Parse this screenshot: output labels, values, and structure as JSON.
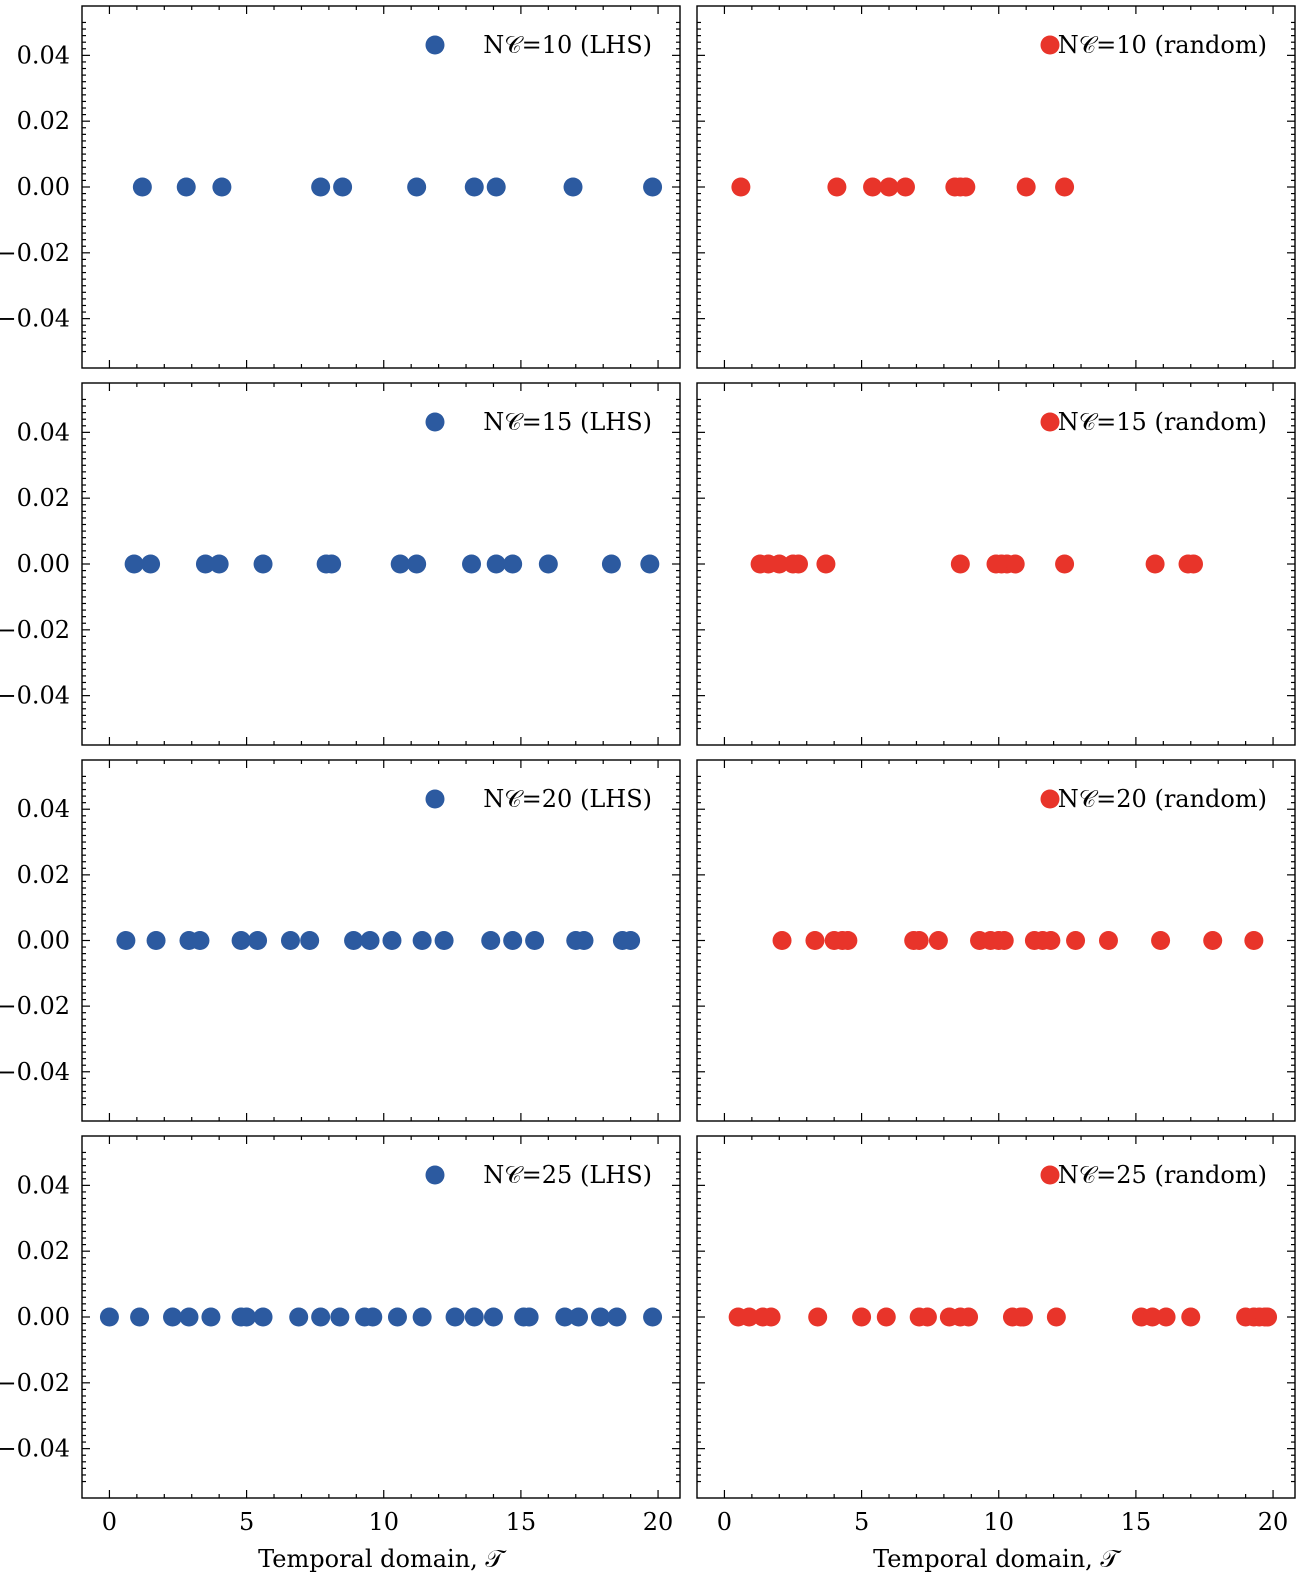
{
  "figure": {
    "xlabel": "Temporal domain, 𝒯"
  },
  "chart_data": [
    {
      "type": "scatter",
      "legend": "N𝒞=10 (LHS)",
      "color": "#2c5aa0",
      "xlim": [
        -1,
        20.8
      ],
      "ylim": [
        -0.055,
        0.055
      ],
      "x": [
        1.2,
        2.8,
        4.1,
        7.7,
        8.5,
        11.2,
        13.3,
        14.1,
        16.9,
        19.8
      ],
      "y": [
        0,
        0,
        0,
        0,
        0,
        0,
        0,
        0,
        0,
        0
      ]
    },
    {
      "type": "scatter",
      "legend": "N𝒞=10 (random)",
      "color": "#e8342a",
      "xlim": [
        -1,
        20.8
      ],
      "ylim": [
        -0.055,
        0.055
      ],
      "x": [
        0.6,
        4.1,
        5.4,
        6.0,
        6.6,
        8.4,
        8.6,
        8.8,
        11.0,
        12.4
      ],
      "y": [
        0,
        0,
        0,
        0,
        0,
        0,
        0,
        0,
        0,
        0
      ]
    },
    {
      "type": "scatter",
      "legend": "N𝒞=15 (LHS)",
      "color": "#2c5aa0",
      "xlim": [
        -1,
        20.8
      ],
      "ylim": [
        -0.055,
        0.055
      ],
      "x": [
        0.9,
        1.5,
        3.5,
        4.0,
        5.6,
        7.9,
        8.1,
        10.6,
        11.2,
        13.2,
        14.1,
        14.7,
        16.0,
        18.3,
        19.7
      ],
      "y": [
        0,
        0,
        0,
        0,
        0,
        0,
        0,
        0,
        0,
        0,
        0,
        0,
        0,
        0,
        0
      ]
    },
    {
      "type": "scatter",
      "legend": "N𝒞=15 (random)",
      "color": "#e8342a",
      "xlim": [
        -1,
        20.8
      ],
      "ylim": [
        -0.055,
        0.055
      ],
      "x": [
        1.3,
        1.6,
        2.0,
        2.5,
        2.7,
        3.7,
        8.6,
        9.9,
        10.1,
        10.3,
        10.6,
        12.4,
        15.7,
        16.9,
        17.1
      ],
      "y": [
        0,
        0,
        0,
        0,
        0,
        0,
        0,
        0,
        0,
        0,
        0,
        0,
        0,
        0,
        0
      ]
    },
    {
      "type": "scatter",
      "legend": "N𝒞=20 (LHS)",
      "color": "#2c5aa0",
      "xlim": [
        -1,
        20.8
      ],
      "ylim": [
        -0.055,
        0.055
      ],
      "x": [
        0.6,
        1.7,
        2.9,
        3.3,
        4.8,
        5.4,
        6.6,
        7.3,
        8.9,
        9.5,
        10.3,
        11.4,
        12.2,
        13.9,
        14.7,
        15.5,
        17.0,
        17.3,
        18.7,
        19.0
      ],
      "y": [
        0,
        0,
        0,
        0,
        0,
        0,
        0,
        0,
        0,
        0,
        0,
        0,
        0,
        0,
        0,
        0,
        0,
        0,
        0,
        0
      ]
    },
    {
      "type": "scatter",
      "legend": "N𝒞=20 (random)",
      "color": "#e8342a",
      "xlim": [
        -1,
        20.8
      ],
      "ylim": [
        -0.055,
        0.055
      ],
      "x": [
        2.1,
        3.3,
        4.0,
        4.3,
        4.5,
        6.9,
        7.1,
        7.8,
        9.3,
        9.7,
        10.0,
        10.2,
        11.3,
        11.6,
        11.9,
        12.8,
        14.0,
        15.9,
        17.8,
        19.3
      ],
      "y": [
        0,
        0,
        0,
        0,
        0,
        0,
        0,
        0,
        0,
        0,
        0,
        0,
        0,
        0,
        0,
        0,
        0,
        0,
        0,
        0
      ]
    },
    {
      "type": "scatter",
      "legend": "N𝒞=25 (LHS)",
      "color": "#2c5aa0",
      "xlim": [
        -1,
        20.8
      ],
      "ylim": [
        -0.055,
        0.055
      ],
      "x": [
        0.0,
        1.1,
        2.3,
        2.9,
        3.7,
        4.8,
        5.0,
        5.6,
        6.9,
        7.7,
        8.4,
        9.3,
        9.6,
        10.5,
        11.4,
        12.6,
        13.3,
        14.0,
        15.1,
        15.3,
        16.6,
        17.1,
        17.9,
        18.5,
        19.8
      ],
      "y": [
        0,
        0,
        0,
        0,
        0,
        0,
        0,
        0,
        0,
        0,
        0,
        0,
        0,
        0,
        0,
        0,
        0,
        0,
        0,
        0,
        0,
        0,
        0,
        0,
        0
      ]
    },
    {
      "type": "scatter",
      "legend": "N𝒞=25 (random)",
      "color": "#e8342a",
      "xlim": [
        -1,
        20.8
      ],
      "ylim": [
        -0.055,
        0.055
      ],
      "x": [
        0.5,
        0.9,
        1.4,
        1.7,
        3.4,
        5.0,
        5.9,
        7.1,
        7.4,
        8.2,
        8.6,
        8.9,
        10.5,
        10.8,
        10.9,
        12.1,
        15.2,
        15.6,
        16.1,
        17.0,
        19.0,
        19.3,
        19.5,
        19.7,
        19.8
      ],
      "y": [
        0,
        0,
        0,
        0,
        0,
        0,
        0,
        0,
        0,
        0,
        0,
        0,
        0,
        0,
        0,
        0,
        0,
        0,
        0,
        0,
        0,
        0,
        0,
        0,
        0
      ]
    }
  ]
}
